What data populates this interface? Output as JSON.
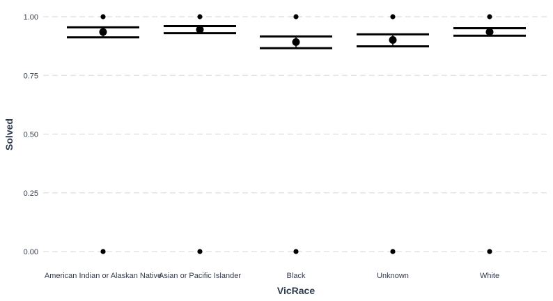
{
  "chart_data": {
    "type": "scatter",
    "title": "",
    "xlabel": "VicRace",
    "ylabel": "Solved",
    "categories": [
      "American Indian or Alaskan Native",
      "Asian or Pacific Islander",
      "Black",
      "Unknown",
      "White"
    ],
    "ylim": [
      0,
      1
    ],
    "yticks": [
      "0.00",
      "0.25",
      "0.50",
      "0.75",
      "1.00"
    ],
    "ytick_values": [
      0,
      0.25,
      0.5,
      0.75,
      1
    ],
    "grid": "horizontal dashed",
    "observed_values": [
      [
        0,
        1
      ],
      [
        0,
        1
      ],
      [
        0,
        1
      ],
      [
        0,
        1
      ],
      [
        0,
        1
      ]
    ],
    "means": [
      0.935,
      0.945,
      0.892,
      0.901,
      0.935
    ],
    "ci_lower": [
      0.912,
      0.93,
      0.866,
      0.874,
      0.919
    ],
    "ci_upper": [
      0.955,
      0.96,
      0.916,
      0.925,
      0.951
    ]
  }
}
